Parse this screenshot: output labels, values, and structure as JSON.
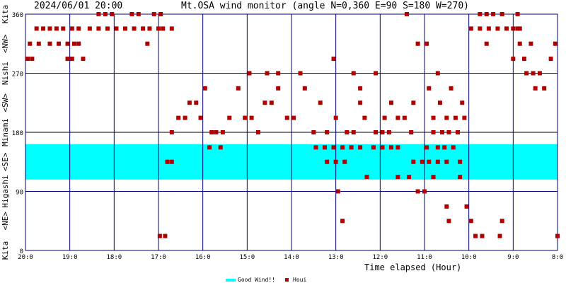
{
  "header": {
    "timestamp": "2024/06/01 20:00",
    "title": "Mt.OSA wind monitor (angle N=0,360 E=90 S=180 W=270)"
  },
  "y_side_labels": [
    "Kita",
    "<NE>",
    "Higashi",
    "<SE>",
    "Minami",
    "<SW>",
    "Nishi",
    "<NW>",
    "Kita"
  ],
  "legend": {
    "good_wind": "Good Wind!!",
    "houi": "Houi"
  },
  "colors": {
    "background": "#ffffff",
    "grid": "#000080",
    "mid_line": "#000000",
    "good_wind_band": "#00ffff",
    "points": "#b00000",
    "text": "#000000"
  },
  "chart_data": {
    "type": "scatter",
    "title": "Mt.OSA wind monitor (angle N=0,360 E=90 S=180 W=270)",
    "xlabel": "Time elapsed (Hour)",
    "ylabel": "",
    "x_axis_note": "time runs right-to-left from 20:0 (left) to 8:0 (right)",
    "xlim": [
      20,
      8
    ],
    "ylim": [
      0,
      360
    ],
    "x_ticks": [
      20,
      19,
      18,
      17,
      16,
      15,
      14,
      13,
      12,
      11,
      10,
      9,
      8
    ],
    "x_tick_labels": [
      "20:0",
      "19:0",
      "18:0",
      "17:0",
      "16:0",
      "15:0",
      "14:0",
      "13:0",
      "12:0",
      "11:0",
      "10:0",
      "9:0",
      "8:0"
    ],
    "y_ticks": [
      0,
      90,
      180,
      270,
      360
    ],
    "y_tick_labels": [
      "0",
      "90",
      "180",
      "270",
      "360"
    ],
    "good_wind_range": [
      108,
      162
    ],
    "grid": true,
    "legend_position": "bottom-center",
    "series": [
      {
        "name": "Houi",
        "points": [
          [
            19.95,
            292
          ],
          [
            19.85,
            292
          ],
          [
            19.75,
            338
          ],
          [
            19.6,
            338
          ],
          [
            19.45,
            338
          ],
          [
            19.3,
            338
          ],
          [
            19.15,
            338
          ],
          [
            19.9,
            315
          ],
          [
            19.7,
            315
          ],
          [
            19.45,
            315
          ],
          [
            19.25,
            315
          ],
          [
            19.05,
            315
          ],
          [
            18.9,
            315
          ],
          [
            18.8,
            315
          ],
          [
            19.05,
            292
          ],
          [
            18.95,
            292
          ],
          [
            18.7,
            292
          ],
          [
            18.95,
            338
          ],
          [
            18.8,
            338
          ],
          [
            18.35,
            360
          ],
          [
            18.2,
            360
          ],
          [
            18.05,
            360
          ],
          [
            17.6,
            360
          ],
          [
            17.45,
            360
          ],
          [
            17.1,
            360
          ],
          [
            16.95,
            360
          ],
          [
            18.55,
            338
          ],
          [
            18.35,
            338
          ],
          [
            18.15,
            338
          ],
          [
            17.95,
            338
          ],
          [
            17.75,
            338
          ],
          [
            17.55,
            338
          ],
          [
            17.35,
            338
          ],
          [
            17.2,
            338
          ],
          [
            17.0,
            338
          ],
          [
            16.9,
            338
          ],
          [
            16.7,
            338
          ],
          [
            17.25,
            315
          ],
          [
            16.97,
            22
          ],
          [
            16.85,
            22
          ],
          [
            16.8,
            135
          ],
          [
            16.7,
            135
          ],
          [
            16.7,
            180
          ],
          [
            16.55,
            202
          ],
          [
            16.4,
            202
          ],
          [
            16.3,
            225
          ],
          [
            16.15,
            225
          ],
          [
            16.05,
            202
          ],
          [
            15.95,
            247
          ],
          [
            15.8,
            180
          ],
          [
            15.7,
            180
          ],
          [
            15.55,
            180
          ],
          [
            15.4,
            202
          ],
          [
            15.2,
            247
          ],
          [
            15.05,
            202
          ],
          [
            14.9,
            202
          ],
          [
            14.75,
            180
          ],
          [
            14.6,
            225
          ],
          [
            14.45,
            225
          ],
          [
            14.3,
            247
          ],
          [
            14.1,
            202
          ],
          [
            13.95,
            202
          ],
          [
            15.85,
            157
          ],
          [
            15.6,
            157
          ],
          [
            14.95,
            270
          ],
          [
            14.55,
            270
          ],
          [
            14.3,
            270
          ],
          [
            13.8,
            270
          ],
          [
            13.7,
            247
          ],
          [
            13.5,
            180
          ],
          [
            13.35,
            225
          ],
          [
            13.2,
            180
          ],
          [
            13.0,
            202
          ],
          [
            13.45,
            157
          ],
          [
            13.25,
            157
          ],
          [
            13.05,
            157
          ],
          [
            12.85,
            157
          ],
          [
            12.65,
            157
          ],
          [
            12.45,
            157
          ],
          [
            13.2,
            135
          ],
          [
            13.0,
            135
          ],
          [
            12.8,
            135
          ],
          [
            13.05,
            292
          ],
          [
            12.95,
            90
          ],
          [
            12.6,
            270
          ],
          [
            12.45,
            247
          ],
          [
            12.75,
            180
          ],
          [
            12.6,
            180
          ],
          [
            12.45,
            225
          ],
          [
            12.35,
            202
          ],
          [
            12.85,
            45
          ],
          [
            12.3,
            112
          ],
          [
            12.15,
            157
          ],
          [
            11.95,
            157
          ],
          [
            11.75,
            157
          ],
          [
            11.6,
            157
          ],
          [
            12.1,
            180
          ],
          [
            11.95,
            180
          ],
          [
            11.8,
            180
          ],
          [
            12.1,
            270
          ],
          [
            11.9,
            202
          ],
          [
            11.75,
            225
          ],
          [
            11.6,
            112
          ],
          [
            11.35,
            112
          ],
          [
            11.25,
            135
          ],
          [
            11.05,
            135
          ],
          [
            11.6,
            202
          ],
          [
            11.45,
            202
          ],
          [
            11.3,
            180
          ],
          [
            11.25,
            225
          ],
          [
            11.4,
            360
          ],
          [
            11.15,
            315
          ],
          [
            10.95,
            315
          ],
          [
            10.95,
            157
          ],
          [
            10.7,
            157
          ],
          [
            10.55,
            157
          ],
          [
            10.35,
            157
          ],
          [
            10.9,
            135
          ],
          [
            10.7,
            135
          ],
          [
            10.5,
            135
          ],
          [
            10.2,
            135
          ],
          [
            10.8,
            180
          ],
          [
            10.6,
            180
          ],
          [
            10.45,
            180
          ],
          [
            10.25,
            180
          ],
          [
            10.8,
            202
          ],
          [
            10.5,
            202
          ],
          [
            10.3,
            202
          ],
          [
            10.1,
            202
          ],
          [
            10.9,
            247
          ],
          [
            10.65,
            225
          ],
          [
            10.4,
            247
          ],
          [
            10.15,
            225
          ],
          [
            10.7,
            270
          ],
          [
            11.15,
            90
          ],
          [
            11.0,
            90
          ],
          [
            10.8,
            112
          ],
          [
            10.5,
            67
          ],
          [
            10.45,
            45
          ],
          [
            10.2,
            112
          ],
          [
            10.05,
            67
          ],
          [
            9.95,
            45
          ],
          [
            9.85,
            22
          ],
          [
            9.7,
            22
          ],
          [
            9.3,
            22
          ],
          [
            9.25,
            45
          ],
          [
            8.0,
            22
          ],
          [
            9.95,
            338
          ],
          [
            9.75,
            338
          ],
          [
            9.55,
            338
          ],
          [
            9.35,
            338
          ],
          [
            9.15,
            338
          ],
          [
            9.0,
            338
          ],
          [
            8.9,
            338
          ],
          [
            9.75,
            360
          ],
          [
            9.6,
            360
          ],
          [
            9.45,
            360
          ],
          [
            9.25,
            360
          ],
          [
            8.9,
            360
          ],
          [
            9.6,
            315
          ],
          [
            8.85,
            338
          ],
          [
            9.0,
            292
          ],
          [
            8.85,
            315
          ],
          [
            8.7,
            270
          ],
          [
            8.55,
            270
          ],
          [
            8.75,
            292
          ],
          [
            8.6,
            315
          ],
          [
            8.5,
            247
          ],
          [
            8.4,
            270
          ],
          [
            8.3,
            247
          ],
          [
            8.15,
            292
          ],
          [
            8.05,
            315
          ]
        ]
      }
    ]
  }
}
